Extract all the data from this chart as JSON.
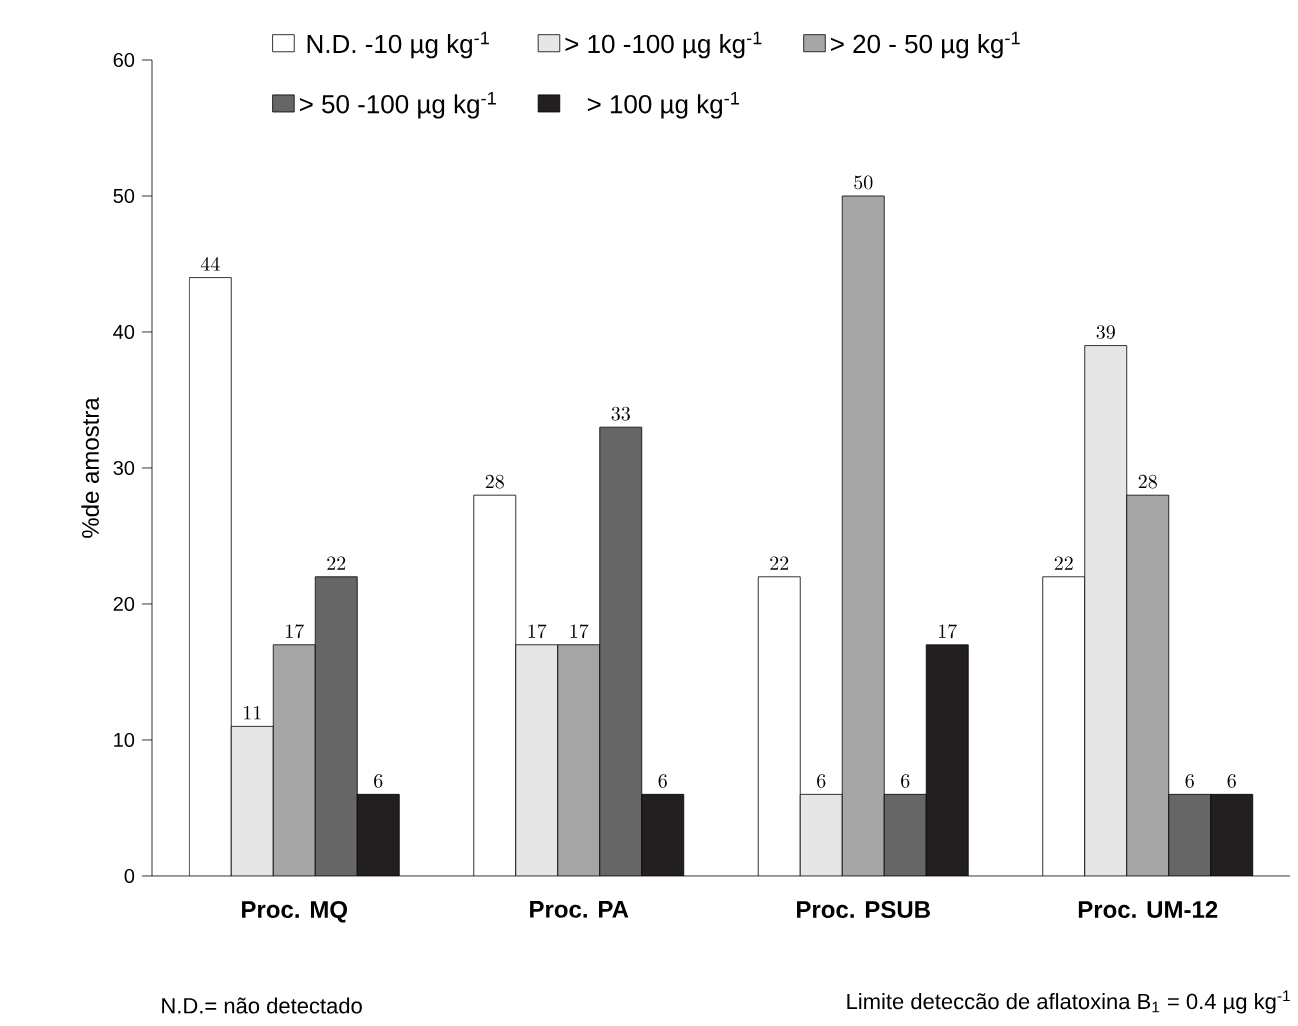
{
  "chart_data": {
    "type": "bar",
    "ylabel": "%de amostra",
    "categories": [
      "Proc. MQ",
      "Proc. PA",
      "Proc. PSUB",
      "Proc. UM-12"
    ],
    "series": [
      {
        "name": "N.D. -10 µg kg$^{-1}$",
        "color": "#ffffff",
        "values": [
          44,
          28,
          22,
          22
        ]
      },
      {
        "name": "> 10 -100 µg kg$^{-1}$",
        "color": "#e6e6e6",
        "values": [
          11,
          17,
          6,
          39
        ]
      },
      {
        "name": "> 20 - 50 µg kg$^{-1}$",
        "color": "#a6a6a6",
        "values": [
          17,
          17,
          50,
          28
        ]
      },
      {
        "name": "> 50 -100 µg kg$^{-1}$",
        "color": "#666666",
        "values": [
          22,
          33,
          6,
          6
        ]
      },
      {
        "name": "> 100 µg kg$^{-1}$",
        "color": "#231f20",
        "values": [
          6,
          6,
          17,
          6
        ]
      }
    ],
    "ylim": [
      0,
      60
    ],
    "yticks": [
      0,
      10,
      20,
      30,
      40,
      50,
      60
    ],
    "grid": false,
    "legend": "top",
    "data_labels": true,
    "annotations": [
      "N.D.= não detectado",
      "Limite deteccão de aflatoxina B$_{1}$ = 0.4 µg kg$^{-1}$"
    ]
  }
}
